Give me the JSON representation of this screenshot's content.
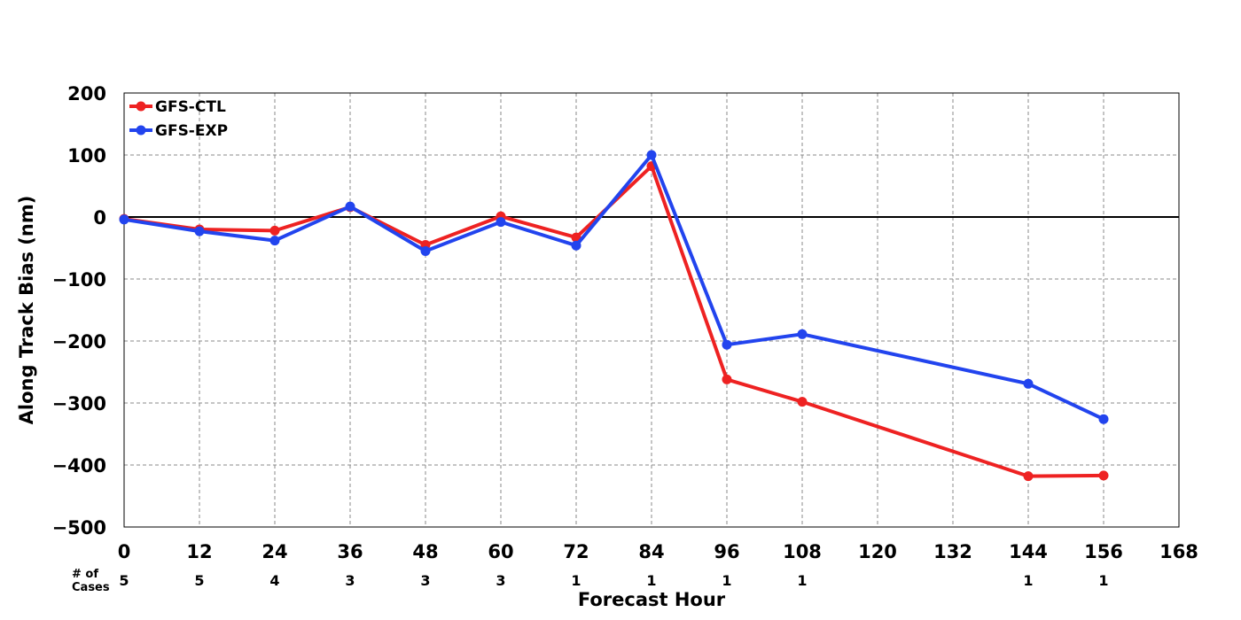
{
  "chart_data": {
    "type": "line",
    "xlabel": "Forecast Hour",
    "ylabel": "Along Track Bias (nm)",
    "xlim": [
      0,
      168
    ],
    "ylim": [
      -500,
      200
    ],
    "x_ticks": [
      0,
      12,
      24,
      36,
      48,
      60,
      72,
      84,
      96,
      108,
      120,
      132,
      144,
      156,
      168
    ],
    "y_ticks": [
      200,
      100,
      0,
      -100,
      -200,
      -300,
      -400,
      -500
    ],
    "x_tick_labels": [
      "0",
      "12",
      "24",
      "36",
      "48",
      "60",
      "72",
      "84",
      "96",
      "108",
      "120",
      "132",
      "144",
      "156",
      "168"
    ],
    "y_tick_labels": [
      "200",
      "100",
      "0",
      "−100",
      "−200",
      "−300",
      "−400",
      "−500"
    ],
    "grid": true,
    "legend_position": "top-left",
    "series": [
      {
        "name": "GFS-CTL",
        "color": "#ee2222",
        "x": [
          0,
          12,
          24,
          36,
          48,
          60,
          72,
          84,
          96,
          108,
          144,
          156
        ],
        "y": [
          -3,
          -20,
          -22,
          16,
          -45,
          1,
          -33,
          82,
          -262,
          -298,
          -418,
          -417
        ]
      },
      {
        "name": "GFS-EXP",
        "color": "#2244ee",
        "x": [
          0,
          12,
          24,
          36,
          48,
          60,
          72,
          84,
          96,
          108,
          144,
          156
        ],
        "y": [
          -4,
          -23,
          -38,
          17,
          -55,
          -8,
          -46,
          100,
          -206,
          -189,
          -269,
          -326
        ]
      }
    ],
    "cases": {
      "header_line1": "# of",
      "header_line2": "Cases",
      "x": [
        0,
        12,
        24,
        36,
        48,
        60,
        72,
        84,
        96,
        108,
        144,
        156
      ],
      "labels": [
        "5",
        "5",
        "4",
        "3",
        "3",
        "3",
        "1",
        "1",
        "1",
        "1",
        "1",
        "1"
      ]
    }
  }
}
